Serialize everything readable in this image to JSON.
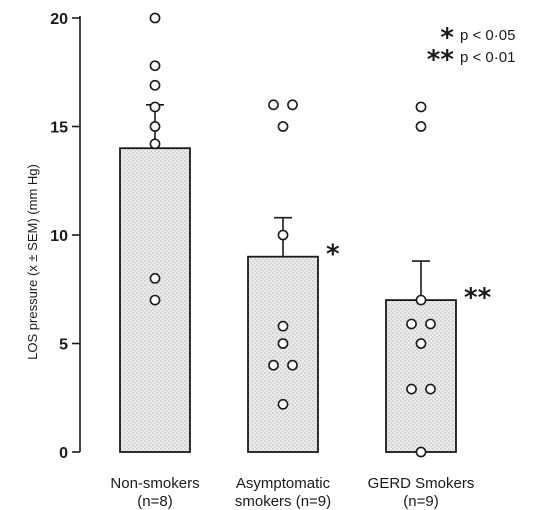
{
  "chart_data": {
    "type": "bar",
    "ylabel": "LOS pressure (x ± SEM) (mm Hg)",
    "ylim": [
      0,
      20
    ],
    "yticks": [
      0,
      5,
      10,
      15,
      20
    ],
    "grid": false,
    "categories": [
      {
        "line1": "Non-smokers",
        "line2": "(n=8)"
      },
      {
        "line1": "Asymptomatic",
        "line2": "smokers (n=9)"
      },
      {
        "line1": "GERD Smokers",
        "line2": "(n=9)"
      }
    ],
    "values": [
      14.0,
      9.0,
      7.0
    ],
    "sem_upper": [
      16.0,
      10.8,
      8.8
    ],
    "significance": [
      "",
      "*",
      "**"
    ],
    "points": [
      [
        20.0,
        17.8,
        16.9,
        15.9,
        15.0,
        14.2,
        8.0,
        7.0
      ],
      [
        16.0,
        16.0,
        15.0,
        10.0,
        5.8,
        5.0,
        4.0,
        4.0,
        2.2
      ],
      [
        15.9,
        15.0,
        7.0,
        5.9,
        5.9,
        5.0,
        2.9,
        2.9,
        0.0
      ]
    ],
    "legend": [
      {
        "symbol": "*",
        "text": "p < 0·05"
      },
      {
        "symbol": "**",
        "text": "p < 0·01"
      }
    ],
    "colors": {
      "bar_fill": "#e6e6e6",
      "stroke": "#1a1a1a",
      "point_fill": "#ffffff"
    }
  }
}
